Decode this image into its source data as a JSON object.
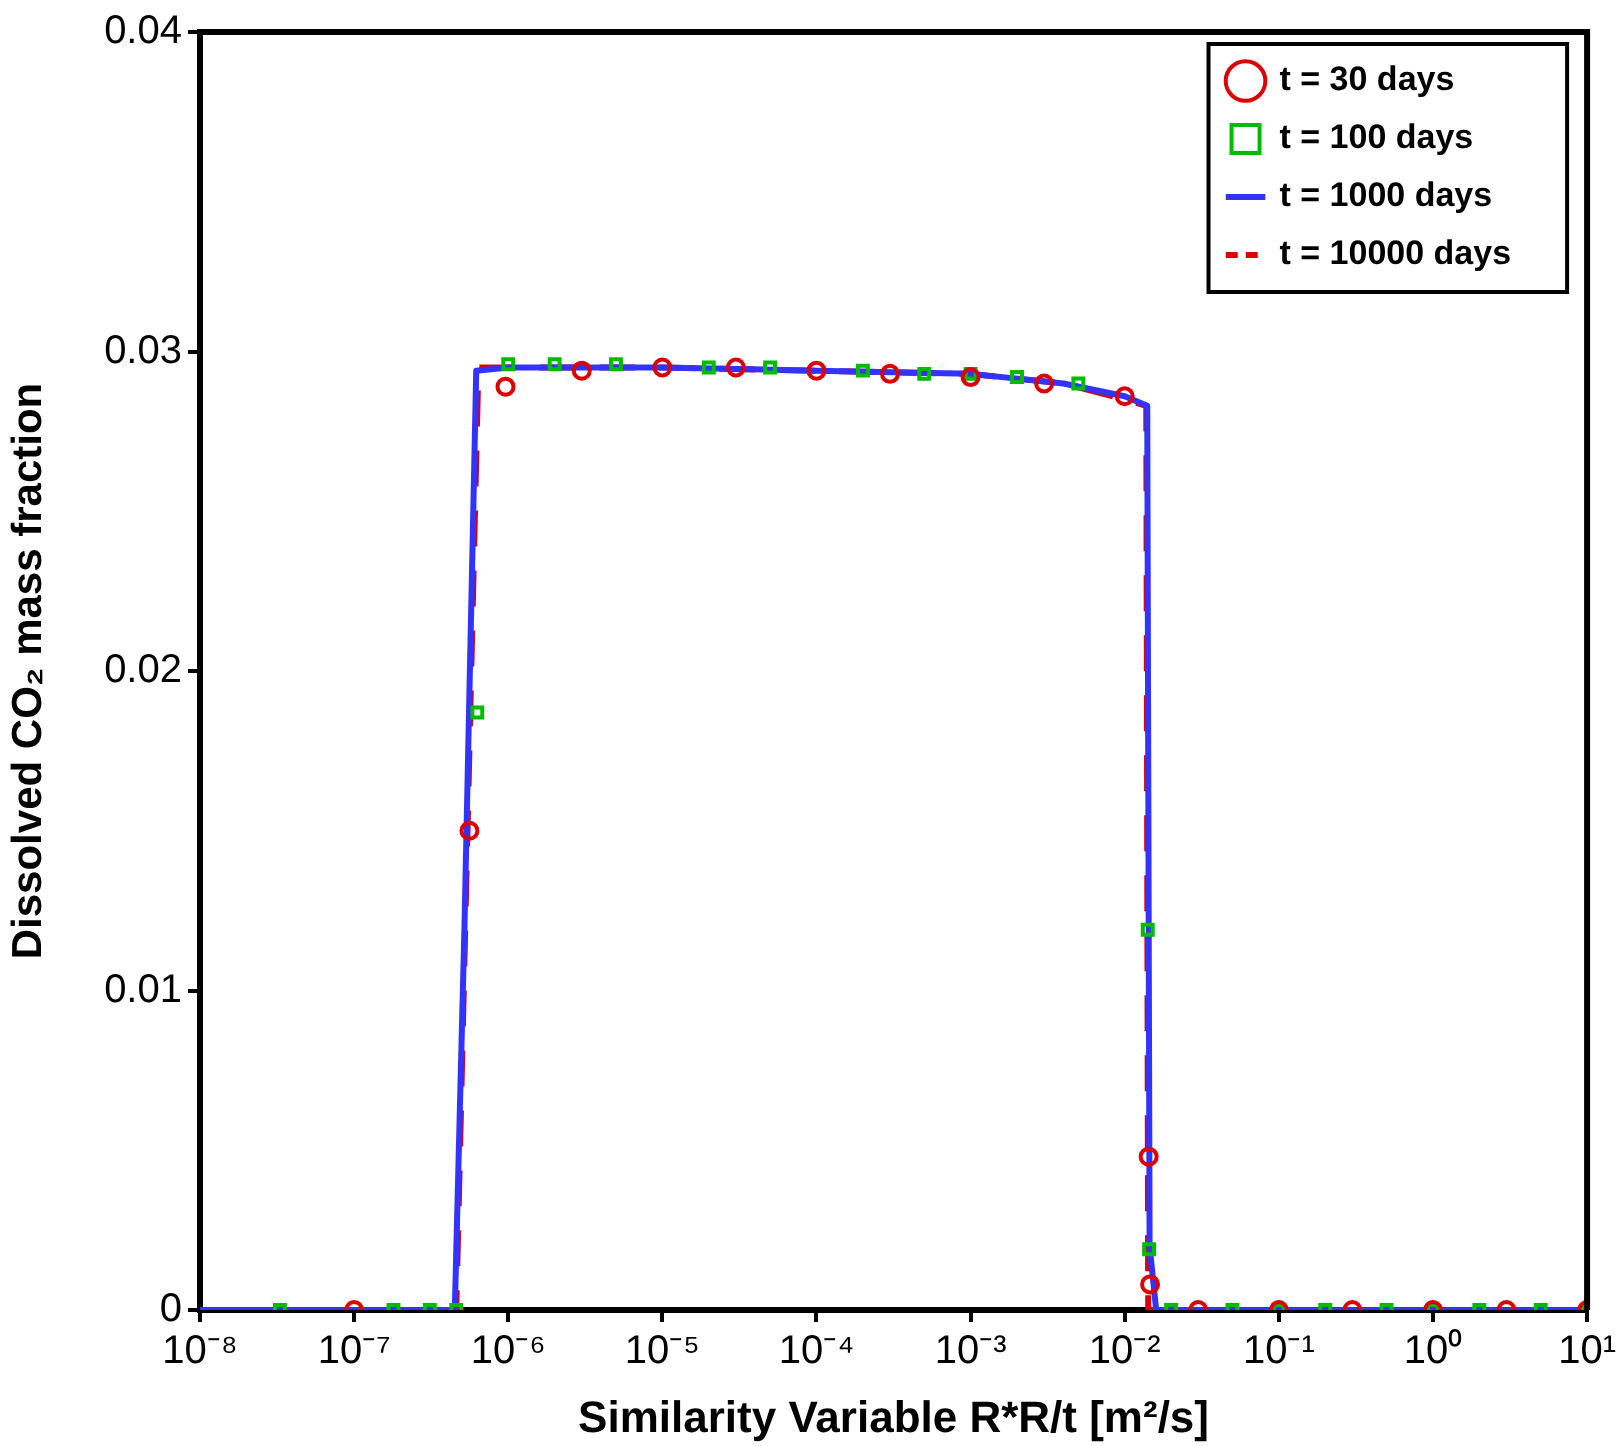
{
  "chart_data": {
    "type": "line",
    "xlabel": "Similarity Variable R*R/t [m²/s]",
    "ylabel": "Dissolved CO₂ mass fraction",
    "log": "x",
    "xlim": [
      1e-08,
      10
    ],
    "xticks": [
      {
        "value": 1e-08,
        "label": "10⁻⁸"
      },
      {
        "value": 1e-07,
        "label": "10⁻⁷"
      },
      {
        "value": 1e-06,
        "label": "10⁻⁶"
      },
      {
        "value": 1e-05,
        "label": "10⁻⁵"
      },
      {
        "value": 0.0001,
        "label": "10⁻⁴"
      },
      {
        "value": 0.001,
        "label": "10⁻³"
      },
      {
        "value": 0.01,
        "label": "10⁻²"
      },
      {
        "value": 0.1,
        "label": "10⁻¹"
      },
      {
        "value": 1,
        "label": "10⁰"
      },
      {
        "value": 10,
        "label": "10¹"
      }
    ],
    "ylim": [
      0,
      0.04
    ],
    "yticks": [
      0,
      0.01,
      0.02,
      0.03,
      0.04
    ],
    "grid": false,
    "legend": "top right",
    "series": [
      {
        "name": "t = 30 days",
        "type": "scatter",
        "marker": "circle",
        "color": "#dd0000",
        "x": [
          1e-07,
          5.6e-07,
          9.6e-07,
          3e-06,
          1e-05,
          3e-05,
          0.0001,
          0.0003,
          0.001,
          0.003,
          0.01,
          0.0143,
          0.0146,
          0.03,
          0.1,
          0.3,
          1,
          3,
          10
        ],
        "values": [
          0,
          0.015,
          0.0289,
          0.0294,
          0.0295,
          0.0295,
          0.0294,
          0.0293,
          0.0292,
          0.029,
          0.0286,
          0.0048,
          0.0008,
          0,
          0,
          0,
          0,
          0,
          0
        ]
      },
      {
        "name": "t = 100 days",
        "type": "scatter",
        "marker": "square",
        "color": "#00bb00",
        "x": [
          3.3e-08,
          1.8e-07,
          3.1e-07,
          4.6e-07,
          6.3e-07,
          1e-06,
          2e-06,
          5e-06,
          1e-05,
          2e-05,
          5e-05,
          0.0001,
          0.0002,
          0.0005,
          0.001,
          0.002,
          0.005,
          0.01,
          0.0141,
          0.0144,
          0.02,
          0.05,
          0.1,
          0.2,
          0.5,
          1,
          2,
          5,
          10
        ],
        "values": [
          0,
          0,
          0,
          0,
          0.0187,
          0.0296,
          0.0296,
          0.0296,
          null,
          0.0295,
          0.0295,
          null,
          0.0294,
          0.0293,
          0.0293,
          0.0292,
          0.029,
          null,
          0.0119,
          0.0019,
          0,
          0,
          0,
          0,
          0,
          0,
          0,
          0,
          0
        ]
      },
      {
        "name": "t = 1000 days",
        "type": "line",
        "line_style": "solid",
        "color": "#3333ff",
        "x": [
          1e-08,
          4.5e-07,
          5.2e-07,
          6.2e-07,
          1e-06,
          1e-05,
          0.0001,
          0.001,
          0.004,
          0.01,
          0.014,
          0.0145,
          0.016,
          10
        ],
        "values": [
          0,
          0,
          0.012,
          0.0294,
          0.0295,
          0.0295,
          0.0294,
          0.0293,
          0.029,
          0.0286,
          0.0283,
          0.002,
          0,
          0
        ]
      },
      {
        "name": "t = 10000 days",
        "type": "line",
        "line_style": "dashed",
        "color": "#dd0000",
        "x": [
          1e-08,
          4.6e-07,
          6.4e-07,
          1e-06,
          1e-05,
          0.0001,
          0.001,
          0.004,
          0.01,
          0.0138,
          0.0142,
          10
        ],
        "values": [
          0,
          0,
          0.0295,
          0.0295,
          0.0295,
          0.0294,
          0.0293,
          0.029,
          0.0285,
          0.0283,
          0,
          0
        ]
      }
    ]
  }
}
